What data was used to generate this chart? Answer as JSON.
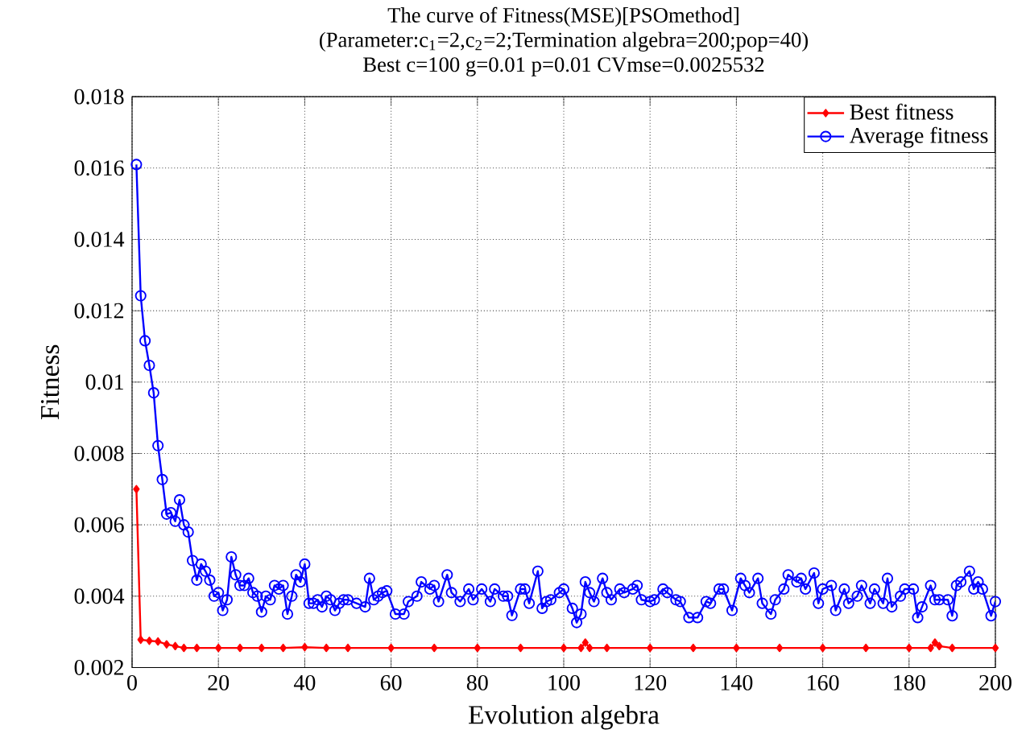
{
  "chart_data": {
    "type": "line",
    "title": "The curve of Fitness(MSE)[PSOmethod]",
    "subtitle": "(Parameter:c$_{1}$=2,c$_{2}$=2;Termination algebra=200;pop=40)",
    "annotations": [
      "Best c=100 g=0.01 p=0.01 CVmse=0.0025532"
    ],
    "xlabel": "Evolution algebra",
    "ylabel": "Fitness",
    "xlim": [
      0,
      200
    ],
    "ylim": [
      0.002,
      0.018
    ],
    "xticks": [
      0,
      20,
      40,
      60,
      80,
      100,
      120,
      140,
      160,
      180,
      200
    ],
    "yticks": [
      0.002,
      0.004,
      0.006,
      0.008,
      0.01,
      0.012,
      0.014,
      0.016,
      0.018
    ],
    "grid": true,
    "legend": "top right",
    "line_style": "solid",
    "series": [
      {
        "name": "Best fitness",
        "color": "#ff0000",
        "marker": "diamond",
        "x": [
          1,
          2,
          4,
          6,
          8,
          10,
          12,
          15,
          20,
          25,
          30,
          35,
          40,
          45,
          50,
          60,
          70,
          80,
          90,
          100,
          104,
          105,
          106,
          110,
          120,
          130,
          140,
          150,
          160,
          170,
          180,
          185,
          186,
          187,
          190,
          200
        ],
        "values": [
          0.007,
          0.00278,
          0.00275,
          0.00273,
          0.00265,
          0.0026,
          0.00255,
          0.00255,
          0.00255,
          0.00255,
          0.00255,
          0.00255,
          0.00257,
          0.00255,
          0.00255,
          0.00255,
          0.00255,
          0.00255,
          0.00255,
          0.00255,
          0.00255,
          0.0027,
          0.00255,
          0.00255,
          0.00255,
          0.00255,
          0.00255,
          0.00255,
          0.00255,
          0.00255,
          0.00255,
          0.00255,
          0.0027,
          0.0026,
          0.00255,
          0.00255
        ]
      },
      {
        "name": "Average fitness",
        "color": "#0000ff",
        "marker": "circle",
        "x": [
          1,
          2,
          3,
          4,
          5,
          6,
          7,
          8,
          9,
          10,
          11,
          12,
          13,
          14,
          15,
          16,
          17,
          18,
          19,
          20,
          21,
          22,
          23,
          24,
          25,
          26,
          27,
          28,
          29,
          30,
          31,
          32,
          33,
          34,
          35,
          36,
          37,
          38,
          39,
          40,
          41,
          42,
          43,
          44,
          45,
          46,
          47,
          48,
          49,
          50,
          52,
          54,
          55,
          56,
          57,
          58,
          59,
          61,
          63,
          64,
          66,
          67,
          69,
          70,
          71,
          73,
          74,
          76,
          78,
          79,
          81,
          83,
          84,
          86,
          87,
          88,
          90,
          91,
          92,
          94,
          95,
          96,
          97,
          99,
          100,
          102,
          103,
          104,
          105,
          106,
          107,
          109,
          110,
          111,
          113,
          114,
          116,
          117,
          118,
          120,
          121,
          123,
          124,
          126,
          127,
          129,
          131,
          133,
          134,
          136,
          137,
          139,
          141,
          142,
          143,
          145,
          146,
          148,
          149,
          151,
          152,
          154,
          155,
          156,
          158,
          159,
          160,
          162,
          163,
          165,
          166,
          168,
          169,
          171,
          172,
          174,
          175,
          176,
          178,
          179,
          181,
          182,
          183,
          185,
          186,
          187,
          189,
          190,
          191,
          192,
          194,
          195,
          196,
          197,
          199,
          200
        ],
        "values": [
          0.0161,
          0.01242,
          0.01116,
          0.01047,
          0.0097,
          0.00822,
          0.00727,
          0.0063,
          0.00634,
          0.0061,
          0.0067,
          0.006,
          0.0058,
          0.005,
          0.00445,
          0.0049,
          0.0047,
          0.00445,
          0.004,
          0.0041,
          0.0036,
          0.0039,
          0.0051,
          0.0046,
          0.0043,
          0.0043,
          0.0045,
          0.0041,
          0.004,
          0.00356,
          0.004,
          0.0039,
          0.0043,
          0.0042,
          0.0043,
          0.0035,
          0.004,
          0.0046,
          0.0044,
          0.0049,
          0.0038,
          0.0038,
          0.0039,
          0.0037,
          0.004,
          0.0039,
          0.0036,
          0.0038,
          0.0039,
          0.0039,
          0.0038,
          0.0037,
          0.0045,
          0.0039,
          0.004,
          0.0041,
          0.00415,
          0.0035,
          0.0035,
          0.00385,
          0.004,
          0.0044,
          0.0042,
          0.0043,
          0.00385,
          0.0046,
          0.0041,
          0.00385,
          0.0042,
          0.0039,
          0.0042,
          0.00385,
          0.0042,
          0.004,
          0.004,
          0.00346,
          0.0042,
          0.0042,
          0.0038,
          0.0047,
          0.00366,
          0.00385,
          0.0039,
          0.0041,
          0.0042,
          0.00366,
          0.00326,
          0.0035,
          0.0044,
          0.0041,
          0.00385,
          0.0045,
          0.0041,
          0.0039,
          0.0042,
          0.0041,
          0.0042,
          0.0043,
          0.0039,
          0.00385,
          0.0039,
          0.0042,
          0.0041,
          0.0039,
          0.00385,
          0.0034,
          0.0034,
          0.00385,
          0.0038,
          0.0042,
          0.0042,
          0.0036,
          0.0045,
          0.0043,
          0.0041,
          0.0045,
          0.0038,
          0.0035,
          0.0039,
          0.0042,
          0.0046,
          0.0044,
          0.0045,
          0.0042,
          0.00465,
          0.0038,
          0.0042,
          0.0043,
          0.0036,
          0.0042,
          0.0038,
          0.004,
          0.0043,
          0.0038,
          0.0042,
          0.0038,
          0.0045,
          0.0037,
          0.004,
          0.0042,
          0.0042,
          0.0034,
          0.0037,
          0.0043,
          0.0039,
          0.0039,
          0.0039,
          0.00345,
          0.0043,
          0.0044,
          0.0047,
          0.0042,
          0.0044,
          0.0042,
          0.00345,
          0.00385
        ]
      }
    ]
  }
}
